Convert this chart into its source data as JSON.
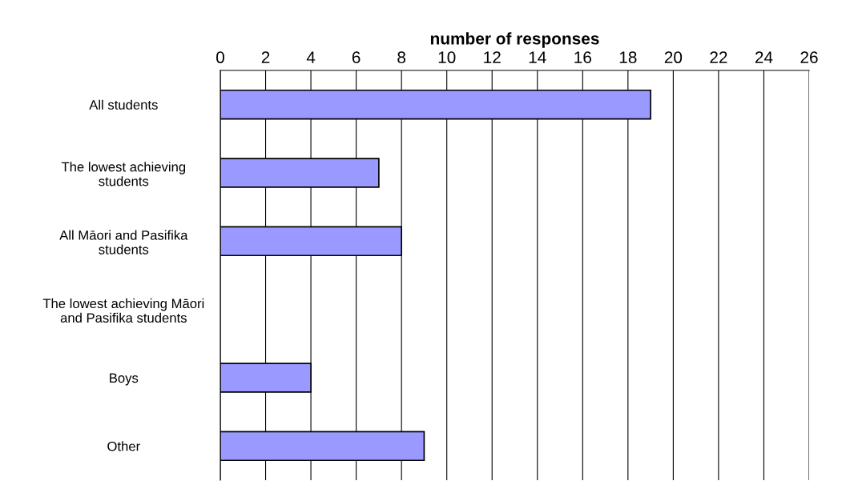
{
  "chart_data": {
    "type": "bar",
    "orientation": "horizontal",
    "xlabel": "number of responses",
    "categories": [
      "All students",
      "The lowest achieving\nstudents",
      "All Māori and Pasifika\nstudents",
      "The lowest achieving Māori\nand Pasifika students",
      "Boys",
      "Other"
    ],
    "values": [
      19,
      7,
      8,
      0,
      4,
      9
    ],
    "color": "#9999ff",
    "xlim": [
      0,
      26
    ],
    "xticks": [
      0,
      2,
      4,
      6,
      8,
      10,
      12,
      14,
      16,
      18,
      20,
      22,
      24,
      26
    ],
    "grid": "x"
  }
}
